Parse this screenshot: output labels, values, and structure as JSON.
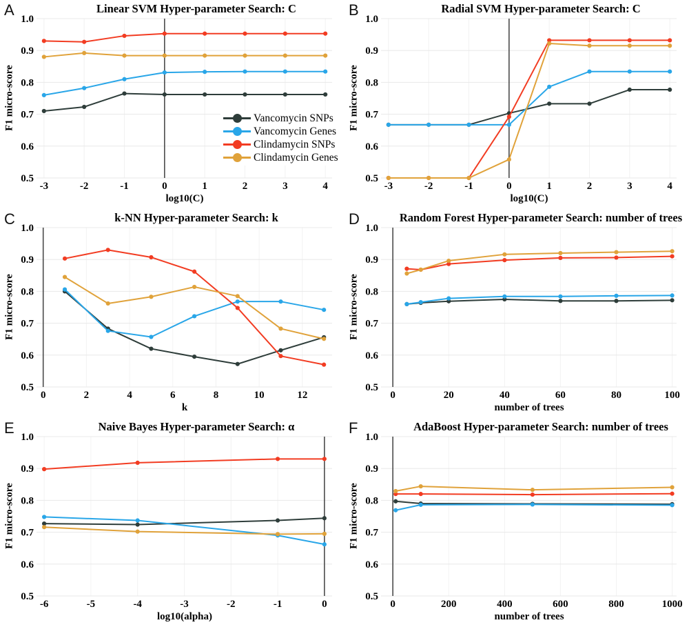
{
  "figure": {
    "ylabel": "F1 micro-score"
  },
  "colors": {
    "vancomycin_snps": "#2e3d3a",
    "vancomycin_genes": "#29a6e8",
    "clindamycin_snps": "#f23c22",
    "clindamycin_genes": "#e0a23a",
    "grid_horizontal": "#e8e8e8",
    "grid_vertical": "#f2f2f2",
    "zero_line": "#4a4a4a",
    "text": "#000000"
  },
  "legend": {
    "items": [
      {
        "label": "Vancomycin SNPs",
        "color": "vancomycin_snps"
      },
      {
        "label": "Vancomycin Genes",
        "color": "vancomycin_genes"
      },
      {
        "label": "Clindamycin SNPs",
        "color": "clindamycin_snps"
      },
      {
        "label": "Clindamycin Genes",
        "color": "clindamycin_genes"
      }
    ]
  },
  "chart_data": [
    {
      "id": "A",
      "type": "line",
      "title": "Linear SVM Hyper-parameter Search: C",
      "xlabel": "log10(C)",
      "ylabel": "F1 micro-score",
      "ylim": [
        0.5,
        1.0
      ],
      "y_tick_values": [
        1.0,
        0.9,
        0.8,
        0.7,
        0.6,
        0.5
      ],
      "y_tick_labels": [
        "1.0",
        "0.9",
        "0.8",
        "0.7",
        "0.6",
        "0.5"
      ],
      "x_domain": [
        -3.1,
        4.1
      ],
      "x_tick_values": [
        -3,
        -2,
        -1,
        0,
        1,
        2,
        3,
        4
      ],
      "x_tick_labels": [
        "-3",
        "-2",
        "-1",
        "0",
        "1",
        "2",
        "3",
        "4"
      ],
      "zero_line_x": 0,
      "series": [
        {
          "name": "Vancomycin SNPs",
          "color": "vancomycin_snps",
          "x": [
            -3,
            -2,
            -1,
            0,
            1,
            2,
            3,
            4
          ],
          "y": [
            0.71,
            0.723,
            0.765,
            0.762,
            0.762,
            0.762,
            0.762,
            0.762
          ]
        },
        {
          "name": "Vancomycin Genes",
          "color": "vancomycin_genes",
          "x": [
            -3,
            -2,
            -1,
            0,
            1,
            2,
            3,
            4
          ],
          "y": [
            0.76,
            0.782,
            0.81,
            0.831,
            0.833,
            0.834,
            0.834,
            0.834
          ]
        },
        {
          "name": "Clindamycin SNPs",
          "color": "clindamycin_snps",
          "x": [
            -3,
            -2,
            -1,
            0,
            1,
            2,
            3,
            4
          ],
          "y": [
            0.93,
            0.927,
            0.946,
            0.953,
            0.953,
            0.953,
            0.953,
            0.953
          ]
        },
        {
          "name": "Clindamycin Genes",
          "color": "clindamycin_genes",
          "x": [
            -3,
            -2,
            -1,
            0,
            1,
            2,
            3,
            4
          ],
          "y": [
            0.88,
            0.892,
            0.884,
            0.884,
            0.884,
            0.884,
            0.884,
            0.884
          ]
        }
      ]
    },
    {
      "id": "B",
      "type": "line",
      "title": "Radial SVM Hyper-parameter Search: C",
      "xlabel": "log10(C)",
      "ylabel": "F1 micro-score",
      "ylim": [
        0.5,
        1.0
      ],
      "y_tick_values": [
        1.0,
        0.9,
        0.8,
        0.7,
        0.6,
        0.5
      ],
      "y_tick_labels": [
        "1.0",
        "0.9",
        "0.8",
        "0.7",
        "0.6",
        "0.5"
      ],
      "x_domain": [
        -3.1,
        4.1
      ],
      "x_tick_values": [
        -3,
        -2,
        -1,
        0,
        1,
        2,
        3,
        4
      ],
      "x_tick_labels": [
        "-3",
        "-2",
        "-1",
        "0",
        "1",
        "2",
        "3",
        "4"
      ],
      "zero_line_x": 0,
      "series": [
        {
          "name": "Vancomycin SNPs",
          "color": "vancomycin_snps",
          "x": [
            -3,
            -2,
            -1,
            0,
            1,
            2,
            3,
            4
          ],
          "y": [
            0.667,
            0.667,
            0.667,
            0.703,
            0.733,
            0.733,
            0.777,
            0.777
          ]
        },
        {
          "name": "Vancomycin Genes",
          "color": "vancomycin_genes",
          "x": [
            -3,
            -2,
            -1,
            0,
            1,
            2,
            3,
            4
          ],
          "y": [
            0.667,
            0.667,
            0.667,
            0.667,
            0.786,
            0.834,
            0.834,
            0.834
          ]
        },
        {
          "name": "Clindamycin SNPs",
          "color": "clindamycin_snps",
          "x": [
            -3,
            -2,
            -1,
            0,
            1,
            2,
            3,
            4
          ],
          "y": [
            0.5,
            0.5,
            0.5,
            0.692,
            0.932,
            0.932,
            0.932,
            0.932
          ]
        },
        {
          "name": "Clindamycin Genes",
          "color": "clindamycin_genes",
          "x": [
            -3,
            -2,
            -1,
            0,
            1,
            2,
            3,
            4
          ],
          "y": [
            0.5,
            0.5,
            0.5,
            0.558,
            0.922,
            0.915,
            0.915,
            0.915
          ]
        }
      ]
    },
    {
      "id": "C",
      "type": "line",
      "title": "k-NN Hyper-parameter Search: k",
      "xlabel": "k",
      "ylabel": "F1 micro-score",
      "ylim": [
        0.5,
        1.0
      ],
      "y_tick_values": [
        1.0,
        0.9,
        0.8,
        0.7,
        0.6,
        0.5
      ],
      "y_tick_labels": [
        "1.0",
        "0.9",
        "0.8",
        "0.7",
        "0.6",
        "0.5"
      ],
      "x_domain": [
        -0.15,
        13.25
      ],
      "x_tick_values": [
        0,
        2,
        4,
        6,
        8,
        10,
        12
      ],
      "x_tick_labels": [
        "0",
        "2",
        "4",
        "6",
        "8",
        "10",
        "12"
      ],
      "zero_line_x": 0,
      "series": [
        {
          "name": "Vancomycin SNPs",
          "color": "vancomycin_snps",
          "x": [
            1,
            3,
            5,
            7,
            9,
            11,
            13
          ],
          "y": [
            0.8,
            0.683,
            0.62,
            0.595,
            0.572,
            0.615,
            0.656
          ]
        },
        {
          "name": "Vancomycin Genes",
          "color": "vancomycin_genes",
          "x": [
            1,
            3,
            5,
            7,
            9,
            11,
            13
          ],
          "y": [
            0.806,
            0.676,
            0.657,
            0.722,
            0.768,
            0.768,
            0.742
          ]
        },
        {
          "name": "Clindamycin SNPs",
          "color": "clindamycin_snps",
          "x": [
            1,
            3,
            5,
            7,
            9,
            11,
            13
          ],
          "y": [
            0.903,
            0.93,
            0.907,
            0.862,
            0.748,
            0.597,
            0.57
          ]
        },
        {
          "name": "Clindamycin Genes",
          "color": "clindamycin_genes",
          "x": [
            1,
            3,
            5,
            7,
            9,
            11,
            13
          ],
          "y": [
            0.845,
            0.762,
            0.783,
            0.814,
            0.785,
            0.683,
            0.651
          ]
        }
      ]
    },
    {
      "id": "D",
      "type": "line",
      "title": "Random Forest Hyper-parameter Search: number of trees",
      "xlabel": "number of trees",
      "ylabel": "F1 micro-score",
      "ylim": [
        0.5,
        1.0
      ],
      "y_tick_values": [
        1.0,
        0.9,
        0.8,
        0.7,
        0.6,
        0.5
      ],
      "y_tick_labels": [
        "1.0",
        "0.9",
        "0.8",
        "0.7",
        "0.6",
        "0.5"
      ],
      "x_domain": [
        -3,
        100.6
      ],
      "x_tick_values": [
        0,
        20,
        40,
        60,
        80,
        100
      ],
      "x_tick_labels": [
        "0",
        "20",
        "40",
        "60",
        "80",
        "100"
      ],
      "zero_line_x": 0,
      "series": [
        {
          "name": "Vancomycin SNPs",
          "color": "vancomycin_snps",
          "x": [
            5,
            10,
            20,
            40,
            60,
            80,
            100
          ],
          "y": [
            0.76,
            0.764,
            0.769,
            0.775,
            0.77,
            0.77,
            0.772
          ]
        },
        {
          "name": "Vancomycin Genes",
          "color": "vancomycin_genes",
          "x": [
            5,
            10,
            20,
            40,
            60,
            80,
            100
          ],
          "y": [
            0.76,
            0.766,
            0.778,
            0.784,
            0.784,
            0.786,
            0.787
          ]
        },
        {
          "name": "Clindamycin SNPs",
          "color": "clindamycin_snps",
          "x": [
            5,
            10,
            20,
            40,
            60,
            80,
            100
          ],
          "y": [
            0.871,
            0.868,
            0.886,
            0.898,
            0.905,
            0.906,
            0.91
          ]
        },
        {
          "name": "Clindamycin Genes",
          "color": "clindamycin_genes",
          "x": [
            5,
            10,
            20,
            40,
            60,
            80,
            100
          ],
          "y": [
            0.856,
            0.868,
            0.896,
            0.916,
            0.92,
            0.923,
            0.926
          ]
        }
      ]
    },
    {
      "id": "E",
      "type": "line",
      "title": "Naive Bayes Hyper-parameter Search: α",
      "xlabel": "log10(alpha)",
      "ylabel": "F1 micro-score",
      "ylim": [
        0.5,
        1.0
      ],
      "y_tick_values": [
        1.0,
        0.9,
        0.8,
        0.7,
        0.6,
        0.5
      ],
      "y_tick_labels": [
        "1.0",
        "0.9",
        "0.8",
        "0.7",
        "0.6",
        "0.5"
      ],
      "x_domain": [
        -6.09,
        0.105
      ],
      "x_tick_values": [
        -6,
        -5,
        -4,
        -3,
        -2,
        -1,
        0
      ],
      "x_tick_labels": [
        "-6",
        "-5",
        "-4",
        "-3",
        "-2",
        "-1",
        "0"
      ],
      "zero_line_x": 0,
      "series": [
        {
          "name": "Vancomycin SNPs",
          "color": "vancomycin_snps",
          "x": [
            -6,
            -4,
            -1,
            0
          ],
          "y": [
            0.727,
            0.724,
            0.737,
            0.744
          ]
        },
        {
          "name": "Vancomycin Genes",
          "color": "vancomycin_genes",
          "x": [
            -6,
            -4,
            -1,
            0
          ],
          "y": [
            0.748,
            0.737,
            0.69,
            0.662
          ]
        },
        {
          "name": "Clindamycin SNPs",
          "color": "clindamycin_snps",
          "x": [
            -6,
            -4,
            -1,
            0
          ],
          "y": [
            0.898,
            0.918,
            0.93,
            0.93
          ]
        },
        {
          "name": "Clindamycin Genes",
          "color": "clindamycin_genes",
          "x": [
            -6,
            -4,
            -1,
            0
          ],
          "y": [
            0.716,
            0.702,
            0.694,
            0.695
          ]
        }
      ]
    },
    {
      "id": "F",
      "type": "line",
      "title": "AdaBoost Hyper-parameter Search: number of trees",
      "xlabel": "number of trees",
      "ylabel": "F1 micro-score",
      "ylim": [
        0.5,
        1.0
      ],
      "y_tick_values": [
        1.0,
        0.9,
        0.8,
        0.7,
        0.6,
        0.5
      ],
      "y_tick_labels": [
        "1.0",
        "0.9",
        "0.8",
        "0.7",
        "0.6",
        "0.5"
      ],
      "x_domain": [
        -30,
        1006
      ],
      "x_tick_values": [
        0,
        200,
        400,
        600,
        800,
        1000
      ],
      "x_tick_labels": [
        "0",
        "200",
        "400",
        "600",
        "800",
        "1000"
      ],
      "zero_line_x": 0,
      "series": [
        {
          "name": "Vancomycin SNPs",
          "color": "vancomycin_snps",
          "x": [
            10,
            100,
            500,
            1000
          ],
          "y": [
            0.797,
            0.79,
            0.789,
            0.788
          ]
        },
        {
          "name": "Vancomycin Genes",
          "color": "vancomycin_genes",
          "x": [
            10,
            100,
            500,
            1000
          ],
          "y": [
            0.769,
            0.786,
            0.787,
            0.785
          ]
        },
        {
          "name": "Clindamycin SNPs",
          "color": "clindamycin_snps",
          "x": [
            10,
            100,
            500,
            1000
          ],
          "y": [
            0.82,
            0.82,
            0.818,
            0.821
          ]
        },
        {
          "name": "Clindamycin Genes",
          "color": "clindamycin_genes",
          "x": [
            10,
            100,
            500,
            1000
          ],
          "y": [
            0.829,
            0.844,
            0.833,
            0.841
          ]
        }
      ]
    }
  ]
}
